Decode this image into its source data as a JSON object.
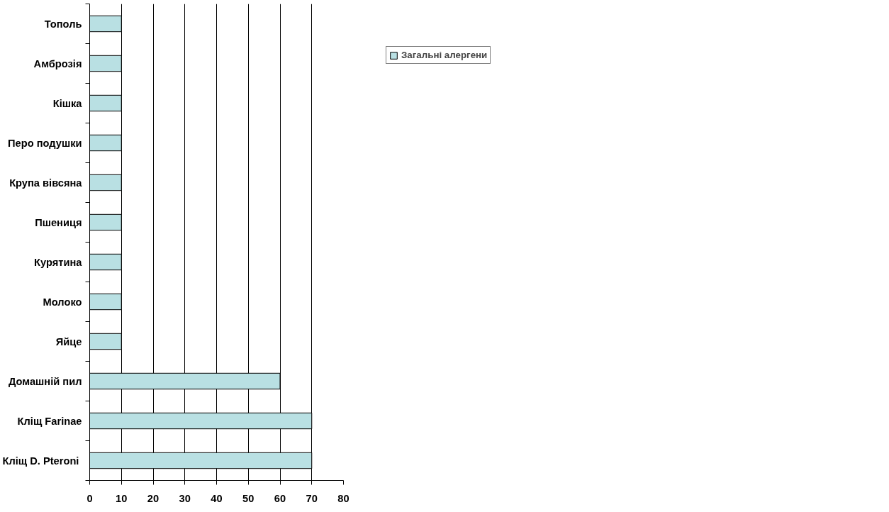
{
  "chart_data": {
    "type": "bar",
    "orientation": "horizontal",
    "categories": [
      "Тополь",
      "Амброзія",
      "Кішка",
      "Перо подушки",
      "Крупа вівсяна",
      "Пшениця",
      "Курятина",
      "Молоко",
      "Яйце",
      "Домашній пил",
      "Кліщ Farinae",
      "Кліщ  D. Pteroni"
    ],
    "series": [
      {
        "name": "Загальні алергени",
        "color": "#b9e0e3",
        "values": [
          10,
          10,
          10,
          10,
          10,
          10,
          10,
          10,
          10,
          60,
          70,
          70
        ]
      }
    ],
    "xlim": [
      0,
      80
    ],
    "xticks": [
      0,
      10,
      20,
      30,
      40,
      50,
      60,
      70,
      80
    ],
    "grid": "x",
    "legend": "right"
  }
}
